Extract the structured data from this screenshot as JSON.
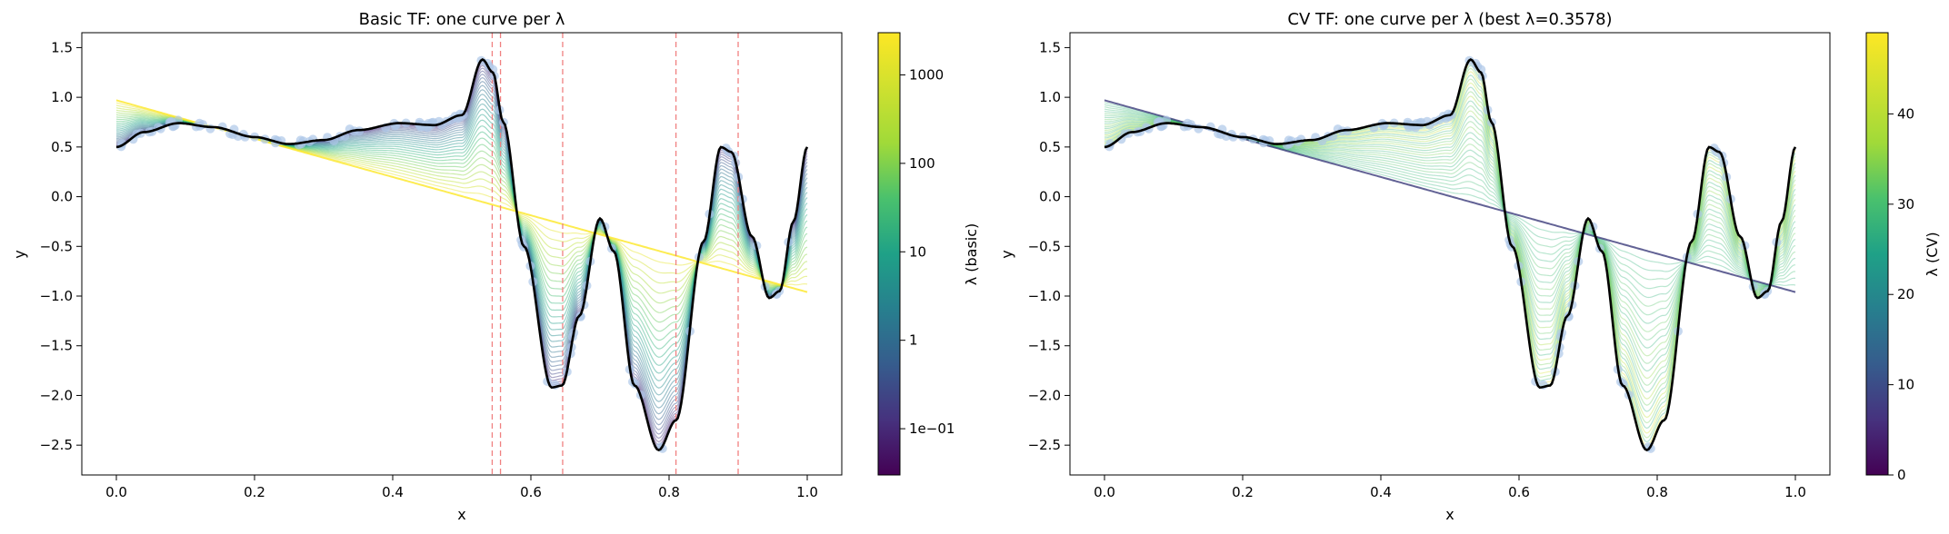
{
  "chart_data": [
    {
      "type": "line",
      "title": "Basic TF: one curve per λ",
      "xlabel": "x",
      "ylabel": "y",
      "xlim": [
        -0.05,
        1.05
      ],
      "ylim": [
        -2.8,
        1.65
      ],
      "xticks": [
        0.0,
        0.2,
        0.4,
        0.6,
        0.8,
        1.0
      ],
      "xtick_labels": [
        "0.0",
        "0.2",
        "0.4",
        "0.6",
        "0.8",
        "1.0"
      ],
      "yticks": [
        1.5,
        1.0,
        0.5,
        0.0,
        -0.5,
        -1.0,
        -1.5,
        -2.0,
        -2.5
      ],
      "ytick_labels": [
        "1.5",
        "1.0",
        "0.5",
        "0.0",
        "−0.5",
        "−1.0",
        "−1.5",
        "−2.0",
        "−2.5"
      ],
      "colormap": "viridis",
      "colorbar": {
        "label": "λ (basic)",
        "scale": "log",
        "range": [
          0.03,
          3000
        ],
        "ticks": [
          0.1,
          1,
          10,
          100,
          1000
        ],
        "tick_labels": [
          "1e−01",
          "1",
          "10",
          "100",
          "1000"
        ]
      },
      "knots_x": [
        0.544,
        0.556,
        0.646,
        0.81,
        0.9
      ],
      "knot_color": "#f08080",
      "n_curves": 30,
      "lambda_range": [
        0.05,
        2000
      ],
      "best_curve_color": "#000000",
      "scatter_color": "#aec7e8"
    },
    {
      "type": "line",
      "title": "CV TF: one curve per λ (best λ=0.3578)",
      "xlabel": "x",
      "ylabel": "y",
      "xlim": [
        -0.05,
        1.05
      ],
      "ylim": [
        -2.8,
        1.65
      ],
      "xticks": [
        0.0,
        0.2,
        0.4,
        0.6,
        0.8,
        1.0
      ],
      "xtick_labels": [
        "0.0",
        "0.2",
        "0.4",
        "0.6",
        "0.8",
        "1.0"
      ],
      "yticks": [
        1.5,
        1.0,
        0.5,
        0.0,
        -0.5,
        -1.0,
        -1.5,
        -2.0,
        -2.5
      ],
      "ytick_labels": [
        "1.5",
        "1.0",
        "0.5",
        "0.0",
        "−0.5",
        "−1.0",
        "−1.5",
        "−2.0",
        "−2.5"
      ],
      "colormap": "viridis",
      "colorbar": {
        "label": "λ (CV)",
        "scale": "linear",
        "range": [
          0,
          49
        ],
        "ticks": [
          0,
          10,
          20,
          30,
          40
        ],
        "tick_labels": [
          "0",
          "10",
          "20",
          "30",
          "40"
        ]
      },
      "n_curves": 30,
      "lambda_range": [
        0.3578,
        49
      ],
      "best_lambda": 0.3578,
      "best_curve_color": "#000000",
      "scatter_color": "#aec7e8"
    }
  ]
}
